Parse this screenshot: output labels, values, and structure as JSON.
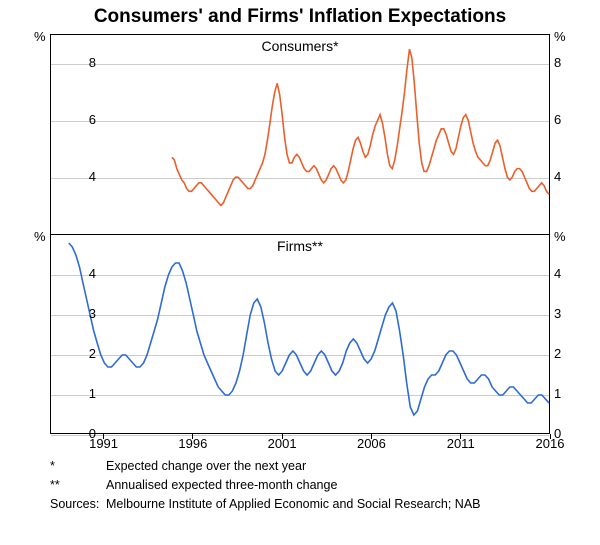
{
  "title": "Consumers' and Firms' Inflation Expectations",
  "panels": {
    "consumers": {
      "label": "Consumers*",
      "line_color": "#e8602c",
      "line_width": 1.6,
      "y_unit": "%",
      "ylim": [
        2,
        9
      ],
      "yticks": [
        4,
        6,
        8
      ],
      "data_start_year": 1994.8,
      "data": [
        4.7,
        4.6,
        4.3,
        4.1,
        3.9,
        3.8,
        3.6,
        3.5,
        3.5,
        3.6,
        3.7,
        3.8,
        3.8,
        3.7,
        3.6,
        3.5,
        3.4,
        3.3,
        3.2,
        3.1,
        3.0,
        3.1,
        3.3,
        3.5,
        3.7,
        3.9,
        4.0,
        4.0,
        3.9,
        3.8,
        3.7,
        3.6,
        3.6,
        3.7,
        3.9,
        4.1,
        4.3,
        4.5,
        4.8,
        5.3,
        5.9,
        6.5,
        7.0,
        7.3,
        6.9,
        6.2,
        5.4,
        4.8,
        4.5,
        4.5,
        4.7,
        4.8,
        4.7,
        4.5,
        4.3,
        4.2,
        4.2,
        4.3,
        4.4,
        4.3,
        4.1,
        3.9,
        3.8,
        3.9,
        4.1,
        4.3,
        4.4,
        4.3,
        4.1,
        3.9,
        3.8,
        3.9,
        4.2,
        4.6,
        5.0,
        5.3,
        5.4,
        5.2,
        4.9,
        4.7,
        4.8,
        5.1,
        5.5,
        5.8,
        6.0,
        6.2,
        5.9,
        5.4,
        4.8,
        4.4,
        4.3,
        4.6,
        5.1,
        5.7,
        6.3,
        7.0,
        7.8,
        8.5,
        8.2,
        7.3,
        6.2,
        5.2,
        4.5,
        4.2,
        4.2,
        4.4,
        4.7,
        5.0,
        5.3,
        5.5,
        5.7,
        5.7,
        5.5,
        5.2,
        4.9,
        4.8,
        5.0,
        5.4,
        5.8,
        6.1,
        6.2,
        6.0,
        5.6,
        5.2,
        4.9,
        4.7,
        4.6,
        4.5,
        4.4,
        4.4,
        4.6,
        4.9,
        5.2,
        5.3,
        5.1,
        4.7,
        4.3,
        4.0,
        3.9,
        4.0,
        4.2,
        4.3,
        4.3,
        4.2,
        4.0,
        3.8,
        3.6,
        3.5,
        3.5,
        3.6,
        3.7,
        3.8,
        3.7,
        3.5,
        3.4
      ]
    },
    "firms": {
      "label": "Firms**",
      "line_color": "#2e6bd6",
      "line_width": 1.6,
      "y_unit": "%",
      "ylim": [
        0,
        5
      ],
      "yticks": [
        0,
        1,
        2,
        3,
        4
      ],
      "data_start_year": 1989.0,
      "data": [
        4.8,
        4.7,
        4.5,
        4.2,
        3.8,
        3.4,
        3.0,
        2.6,
        2.3,
        2.0,
        1.8,
        1.7,
        1.7,
        1.8,
        1.9,
        2.0,
        2.0,
        1.9,
        1.8,
        1.7,
        1.7,
        1.8,
        2.0,
        2.3,
        2.6,
        2.9,
        3.3,
        3.7,
        4.0,
        4.2,
        4.3,
        4.3,
        4.1,
        3.8,
        3.4,
        3.0,
        2.6,
        2.3,
        2.0,
        1.8,
        1.6,
        1.4,
        1.2,
        1.1,
        1.0,
        1.0,
        1.1,
        1.3,
        1.6,
        2.0,
        2.5,
        3.0,
        3.3,
        3.4,
        3.2,
        2.8,
        2.3,
        1.9,
        1.6,
        1.5,
        1.6,
        1.8,
        2.0,
        2.1,
        2.0,
        1.8,
        1.6,
        1.5,
        1.6,
        1.8,
        2.0,
        2.1,
        2.0,
        1.8,
        1.6,
        1.5,
        1.6,
        1.8,
        2.1,
        2.3,
        2.4,
        2.3,
        2.1,
        1.9,
        1.8,
        1.9,
        2.1,
        2.4,
        2.7,
        3.0,
        3.2,
        3.3,
        3.1,
        2.6,
        2.0,
        1.3,
        0.7,
        0.5,
        0.6,
        0.9,
        1.2,
        1.4,
        1.5,
        1.5,
        1.6,
        1.8,
        2.0,
        2.1,
        2.1,
        2.0,
        1.8,
        1.6,
        1.4,
        1.3,
        1.3,
        1.4,
        1.5,
        1.5,
        1.4,
        1.2,
        1.1,
        1.0,
        1.0,
        1.1,
        1.2,
        1.2,
        1.1,
        1.0,
        0.9,
        0.8,
        0.8,
        0.9,
        1.0,
        1.0,
        0.9,
        0.8
      ]
    }
  },
  "x_axis": {
    "xlim": [
      1988,
      2016
    ],
    "xticks": [
      1991,
      1996,
      2001,
      2006,
      2011,
      2016
    ]
  },
  "footnotes": [
    {
      "symbol": "*",
      "text": "Expected change over the next year"
    },
    {
      "symbol": "**",
      "text": "Annualised expected three-month change"
    }
  ],
  "sources": {
    "label": "Sources:",
    "text": "Melbourne Institute of Applied Economic and Social Research; NAB"
  },
  "colors": {
    "grid": "#cccccc",
    "axis": "#000000",
    "background": "#ffffff",
    "text": "#000000"
  }
}
